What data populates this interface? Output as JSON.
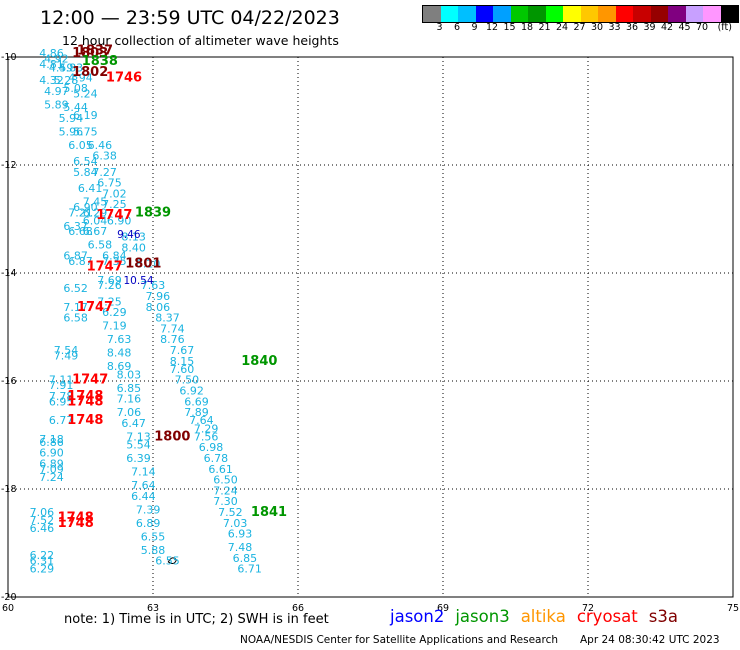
{
  "header": {
    "title": "12:00 — 23:59 UTC 04/22/2023",
    "subtitle": "12 hour collection of altimeter wave heights"
  },
  "legend": {
    "colors": [
      "#7f7f7f",
      "#00ffff",
      "#00bfff",
      "#0000ff",
      "#00a0ff",
      "#00c800",
      "#009600",
      "#00ff00",
      "#ffff00",
      "#ffc800",
      "#ff9600",
      "#ff0000",
      "#c80000",
      "#960000",
      "#800080",
      "#c8a0ff",
      "#ff96ff",
      "#000000"
    ],
    "labels": [
      "3",
      "6",
      "9",
      "12",
      "15",
      "18",
      "21",
      "24",
      "27",
      "30",
      "33",
      "36",
      "39",
      "42",
      "45",
      "70",
      "(ft)"
    ]
  },
  "axes": {
    "lon_ticks": [
      "60",
      "63",
      "66",
      "69",
      "72",
      "75"
    ],
    "lat_ticks": [
      "-10",
      "-12",
      "-14",
      "-16",
      "-18",
      "-20"
    ]
  },
  "footer": {
    "note": "note:  1) Time is in UTC;  2) SWH is in feet",
    "satellites": [
      {
        "name": "jason2",
        "color": "#0000ff"
      },
      {
        "name": "jason3",
        "color": "#009600"
      },
      {
        "name": "altika",
        "color": "#ff9600"
      },
      {
        "name": "cryosat",
        "color": "#ff0000"
      },
      {
        "name": "s3a",
        "color": "#800000"
      }
    ],
    "credit": "NOAA/NESDIS Center for Satellite Applications and Research",
    "timestamp": "Apr 24 08:30:42 UTC 2023"
  },
  "colors": {
    "swh_text": "#1ab3e0",
    "swh_high": "#0000c0",
    "cryosat": "#ff0000",
    "jason3": "#009600",
    "s3a": "#800000",
    "grid": "#000000"
  },
  "chart_data": {
    "type": "scatter",
    "xlim": [
      60,
      75
    ],
    "ylim": [
      -20,
      -10
    ],
    "grid": true,
    "swh_values": [
      {
        "lon": 60.9,
        "lat": -10.0,
        "v": "4.86"
      },
      {
        "lon": 61.0,
        "lat": -10.1,
        "v": "4.92"
      },
      {
        "lon": 60.9,
        "lat": -10.2,
        "v": "4.81"
      },
      {
        "lon": 61.1,
        "lat": -10.27,
        "v": "4.59"
      },
      {
        "lon": 61.3,
        "lat": -10.27,
        "v": "4.83"
      },
      {
        "lon": 60.9,
        "lat": -10.5,
        "v": "4.32"
      },
      {
        "lon": 61.2,
        "lat": -10.5,
        "v": "5.28"
      },
      {
        "lon": 61.5,
        "lat": -10.45,
        "v": "4.94"
      },
      {
        "lon": 61.0,
        "lat": -10.7,
        "v": "4.97"
      },
      {
        "lon": 61.4,
        "lat": -10.65,
        "v": "5.08"
      },
      {
        "lon": 61.6,
        "lat": -10.75,
        "v": "5.24"
      },
      {
        "lon": 61.0,
        "lat": -10.95,
        "v": "5.89"
      },
      {
        "lon": 61.4,
        "lat": -11.0,
        "v": "5.44"
      },
      {
        "lon": 61.3,
        "lat": -11.2,
        "v": "5.94"
      },
      {
        "lon": 61.6,
        "lat": -11.15,
        "v": "6.19"
      },
      {
        "lon": 61.3,
        "lat": -11.45,
        "v": "5.96"
      },
      {
        "lon": 61.6,
        "lat": -11.45,
        "v": "5.75"
      },
      {
        "lon": 61.5,
        "lat": -11.7,
        "v": "6.05"
      },
      {
        "lon": 61.9,
        "lat": -11.7,
        "v": "6.46"
      },
      {
        "lon": 61.6,
        "lat": -12.0,
        "v": "6.54"
      },
      {
        "lon": 62.0,
        "lat": -11.9,
        "v": "6.38"
      },
      {
        "lon": 61.6,
        "lat": -12.2,
        "v": "5.84"
      },
      {
        "lon": 62.0,
        "lat": -12.2,
        "v": "7.27"
      },
      {
        "lon": 61.7,
        "lat": -12.5,
        "v": "6.41"
      },
      {
        "lon": 62.1,
        "lat": -12.4,
        "v": "6.75"
      },
      {
        "lon": 62.2,
        "lat": -12.6,
        "v": "7.02"
      },
      {
        "lon": 61.8,
        "lat": -12.75,
        "v": "7.45"
      },
      {
        "lon": 62.2,
        "lat": -12.8,
        "v": "7.25"
      },
      {
        "lon": 61.6,
        "lat": -12.85,
        "v": "6.90"
      },
      {
        "lon": 61.5,
        "lat": -12.95,
        "v": "7.21"
      },
      {
        "lon": 61.8,
        "lat": -12.95,
        "v": "6.29"
      },
      {
        "lon": 61.8,
        "lat": -13.1,
        "v": "6.04"
      },
      {
        "lon": 62.3,
        "lat": -13.1,
        "v": "6.90"
      },
      {
        "lon": 61.4,
        "lat": -13.2,
        "v": "6.37"
      },
      {
        "lon": 61.5,
        "lat": -13.3,
        "v": "6.68"
      },
      {
        "lon": 61.8,
        "lat": -13.3,
        "v": "6.67"
      },
      {
        "lon": 62.6,
        "lat": -13.4,
        "v": "8.13"
      },
      {
        "lon": 61.9,
        "lat": -13.55,
        "v": "6.58"
      },
      {
        "lon": 62.6,
        "lat": -13.6,
        "v": "8.40"
      },
      {
        "lon": 61.4,
        "lat": -13.75,
        "v": "6.87"
      },
      {
        "lon": 62.2,
        "lat": -13.75,
        "v": "6.84"
      },
      {
        "lon": 61.5,
        "lat": -13.85,
        "v": "6.87"
      },
      {
        "lon": 62.2,
        "lat": -13.85,
        "v": "7.35"
      },
      {
        "lon": 62.9,
        "lat": -13.9,
        "v": "8.20"
      },
      {
        "lon": 62.1,
        "lat": -14.2,
        "v": "7.69"
      },
      {
        "lon": 63.0,
        "lat": -14.3,
        "v": "7.63"
      },
      {
        "lon": 61.4,
        "lat": -14.35,
        "v": "6.52"
      },
      {
        "lon": 62.1,
        "lat": -14.3,
        "v": "7.26"
      },
      {
        "lon": 63.1,
        "lat": -14.5,
        "v": "7.96"
      },
      {
        "lon": 62.1,
        "lat": -14.6,
        "v": "7.25"
      },
      {
        "lon": 61.4,
        "lat": -14.7,
        "v": "7.17"
      },
      {
        "lon": 63.1,
        "lat": -14.7,
        "v": "8.06"
      },
      {
        "lon": 62.2,
        "lat": -14.8,
        "v": "6.29"
      },
      {
        "lon": 61.4,
        "lat": -14.9,
        "v": "6.58"
      },
      {
        "lon": 63.3,
        "lat": -14.9,
        "v": "8.37"
      },
      {
        "lon": 62.2,
        "lat": -15.05,
        "v": "7.19"
      },
      {
        "lon": 63.4,
        "lat": -15.1,
        "v": "7.74"
      },
      {
        "lon": 62.3,
        "lat": -15.3,
        "v": "7.63"
      },
      {
        "lon": 63.4,
        "lat": -15.3,
        "v": "8.76"
      },
      {
        "lon": 61.2,
        "lat": -15.5,
        "v": "7.54"
      },
      {
        "lon": 61.2,
        "lat": -15.6,
        "v": "7.49"
      },
      {
        "lon": 62.3,
        "lat": -15.55,
        "v": "8.48"
      },
      {
        "lon": 63.6,
        "lat": -15.5,
        "v": "7.67"
      },
      {
        "lon": 62.3,
        "lat": -15.8,
        "v": "8.69"
      },
      {
        "lon": 63.6,
        "lat": -15.7,
        "v": "8.15"
      },
      {
        "lon": 63.6,
        "lat": -15.85,
        "v": "7.60"
      },
      {
        "lon": 62.5,
        "lat": -15.95,
        "v": "8.03"
      },
      {
        "lon": 61.1,
        "lat": -16.05,
        "v": "7.11"
      },
      {
        "lon": 61.1,
        "lat": -16.15,
        "v": "7.91"
      },
      {
        "lon": 63.7,
        "lat": -16.05,
        "v": "7.50"
      },
      {
        "lon": 62.5,
        "lat": -16.2,
        "v": "6.85"
      },
      {
        "lon": 63.8,
        "lat": -16.25,
        "v": "6.92"
      },
      {
        "lon": 61.1,
        "lat": -16.35,
        "v": "7.78"
      },
      {
        "lon": 62.5,
        "lat": -16.4,
        "v": "7.16"
      },
      {
        "lon": 63.9,
        "lat": -16.45,
        "v": "6.69"
      },
      {
        "lon": 61.1,
        "lat": -16.45,
        "v": "6.95"
      },
      {
        "lon": 62.5,
        "lat": -16.65,
        "v": "7.06"
      },
      {
        "lon": 63.9,
        "lat": -16.65,
        "v": "7.89"
      },
      {
        "lon": 61.1,
        "lat": -16.8,
        "v": "6.77"
      },
      {
        "lon": 62.6,
        "lat": -16.85,
        "v": "6.47"
      },
      {
        "lon": 64.0,
        "lat": -16.8,
        "v": "7.64"
      },
      {
        "lon": 64.1,
        "lat": -16.95,
        "v": "7.29"
      },
      {
        "lon": 62.7,
        "lat": -17.1,
        "v": "7.13"
      },
      {
        "lon": 64.1,
        "lat": -17.1,
        "v": "7.56"
      },
      {
        "lon": 60.9,
        "lat": -17.15,
        "v": "7.18"
      },
      {
        "lon": 60.9,
        "lat": -17.2,
        "v": "6.86"
      },
      {
        "lon": 62.7,
        "lat": -17.25,
        "v": "5.54"
      },
      {
        "lon": 64.2,
        "lat": -17.3,
        "v": "6.98"
      },
      {
        "lon": 60.9,
        "lat": -17.4,
        "v": "6.90"
      },
      {
        "lon": 62.7,
        "lat": -17.5,
        "v": "6.39"
      },
      {
        "lon": 64.3,
        "lat": -17.5,
        "v": "6.78"
      },
      {
        "lon": 60.9,
        "lat": -17.6,
        "v": "6.89"
      },
      {
        "lon": 60.9,
        "lat": -17.7,
        "v": "7.09"
      },
      {
        "lon": 62.8,
        "lat": -17.75,
        "v": "7.14"
      },
      {
        "lon": 64.4,
        "lat": -17.7,
        "v": "6.61"
      },
      {
        "lon": 60.9,
        "lat": -17.85,
        "v": "7.24"
      },
      {
        "lon": 64.5,
        "lat": -17.9,
        "v": "6.50"
      },
      {
        "lon": 62.8,
        "lat": -18.0,
        "v": "7.64"
      },
      {
        "lon": 64.5,
        "lat": -18.1,
        "v": "7.24"
      },
      {
        "lon": 62.8,
        "lat": -18.2,
        "v": "6.44"
      },
      {
        "lon": 64.5,
        "lat": -18.3,
        "v": "7.30"
      },
      {
        "lon": 62.9,
        "lat": -18.45,
        "v": "7.39"
      },
      {
        "lon": 60.7,
        "lat": -18.5,
        "v": "7.06"
      },
      {
        "lon": 64.6,
        "lat": -18.5,
        "v": "7.52"
      },
      {
        "lon": 60.7,
        "lat": -18.65,
        "v": "7.52"
      },
      {
        "lon": 62.9,
        "lat": -18.7,
        "v": "6.89"
      },
      {
        "lon": 64.7,
        "lat": -18.7,
        "v": "7.03"
      },
      {
        "lon": 60.7,
        "lat": -18.8,
        "v": "6.46"
      },
      {
        "lon": 63.0,
        "lat": -18.95,
        "v": "6.55"
      },
      {
        "lon": 64.8,
        "lat": -18.9,
        "v": "6.93"
      },
      {
        "lon": 63.0,
        "lat": -19.2,
        "v": "5.88"
      },
      {
        "lon": 64.8,
        "lat": -19.15,
        "v": "7.48"
      },
      {
        "lon": 60.7,
        "lat": -19.3,
        "v": "6.22"
      },
      {
        "lon": 64.9,
        "lat": -19.35,
        "v": "6.85"
      },
      {
        "lon": 63.3,
        "lat": -19.4,
        "v": "6.55"
      },
      {
        "lon": 60.7,
        "lat": -19.4,
        "v": "6.31"
      },
      {
        "lon": 60.7,
        "lat": -19.55,
        "v": "6.29"
      },
      {
        "lon": 65.0,
        "lat": -19.55,
        "v": "6.71"
      }
    ],
    "swh_high_values": [
      {
        "lon": 62.5,
        "lat": -13.35,
        "v": "9.46"
      },
      {
        "lon": 62.7,
        "lat": -14.2,
        "v": "10.54"
      }
    ],
    "time_labels": [
      {
        "lon": 61.7,
        "lat": -10.0,
        "v": "1803",
        "sat": "s3a"
      },
      {
        "lon": 61.8,
        "lat": -9.95,
        "v": "1837",
        "sat": "s3a"
      },
      {
        "lon": 61.9,
        "lat": -10.15,
        "v": "1838",
        "sat": "jason3"
      },
      {
        "lon": 61.7,
        "lat": -10.35,
        "v": "1802",
        "sat": "s3a"
      },
      {
        "lon": 62.4,
        "lat": -10.45,
        "v": "1746",
        "sat": "cryosat"
      },
      {
        "lon": 62.2,
        "lat": -13.0,
        "v": "1747",
        "sat": "cryosat"
      },
      {
        "lon": 63.0,
        "lat": -12.95,
        "v": "1839",
        "sat": "jason3"
      },
      {
        "lon": 62.0,
        "lat": -13.95,
        "v": "1747",
        "sat": "cryosat"
      },
      {
        "lon": 62.8,
        "lat": -13.9,
        "v": "1801",
        "sat": "s3a"
      },
      {
        "lon": 61.8,
        "lat": -14.7,
        "v": "1747",
        "sat": "cryosat"
      },
      {
        "lon": 65.2,
        "lat": -15.7,
        "v": "1840",
        "sat": "jason3"
      },
      {
        "lon": 61.7,
        "lat": -16.05,
        "v": "1747",
        "sat": "cryosat"
      },
      {
        "lon": 61.6,
        "lat": -16.35,
        "v": "1748",
        "sat": "cryosat"
      },
      {
        "lon": 61.6,
        "lat": -16.45,
        "v": "1748",
        "sat": "cryosat"
      },
      {
        "lon": 61.6,
        "lat": -16.8,
        "v": "1748",
        "sat": "cryosat"
      },
      {
        "lon": 63.4,
        "lat": -17.1,
        "v": "1800",
        "sat": "s3a"
      },
      {
        "lon": 65.4,
        "lat": -18.5,
        "v": "1841",
        "sat": "jason3"
      },
      {
        "lon": 61.4,
        "lat": -18.6,
        "v": "1748",
        "sat": "cryosat"
      },
      {
        "lon": 61.4,
        "lat": -18.7,
        "v": "1748",
        "sat": "cryosat"
      }
    ]
  }
}
